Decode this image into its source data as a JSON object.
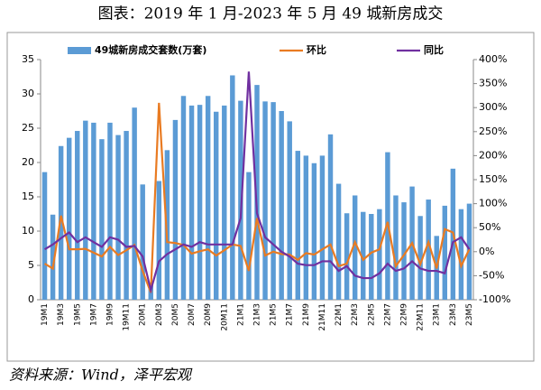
{
  "chart_data": {
    "type": "bar_line",
    "title": "图表：2019 年 1 月-2023 年 5 月 49 城新房成交",
    "source": "资料来源：Wind，泽平宏观",
    "categories": [
      "19M1",
      null,
      "19M3",
      null,
      "19M5",
      null,
      "19M7",
      null,
      "19M9",
      null,
      "19M11",
      null,
      "20M1",
      null,
      "20M3",
      null,
      "20M5",
      null,
      "20M7",
      null,
      "20M9",
      null,
      "20M11",
      null,
      "21M1",
      null,
      "21M3",
      null,
      "21M5",
      null,
      "21M7",
      null,
      "21M9",
      null,
      "21M11",
      null,
      "22M1",
      null,
      "22M3",
      null,
      "22M5",
      null,
      "22M7",
      null,
      "22M9",
      null,
      "22M11",
      null,
      "23M1",
      null,
      "23M3",
      null,
      "23M5"
    ],
    "series": [
      {
        "name": "49城新房成交套数(万套)",
        "color": "#5b9bd5",
        "kind": "bar",
        "values": [
          18.6,
          12.4,
          22.4,
          23.6,
          24.6,
          26.1,
          25.8,
          23.4,
          25.8,
          24.0,
          24.6,
          28.0,
          16.8,
          2.5,
          17.3,
          21.8,
          26.2,
          29.7,
          28.3,
          28.4,
          29.7,
          27.4,
          28.3,
          32.7,
          29.0,
          18.6,
          31.3,
          28.9,
          28.8,
          27.5,
          26.0,
          21.7,
          21.0,
          19.9,
          21.0,
          24.1,
          16.9,
          12.6,
          15.2,
          12.8,
          12.5,
          13.2,
          21.5,
          15.2,
          14.2,
          16.5,
          12.2,
          14.6,
          9.3,
          13.7,
          19.1,
          13.2,
          14.0
        ]
      },
      {
        "name": "环比",
        "color": "#e97b22",
        "kind": "line",
        "axis": "y2",
        "values": [
          -25,
          -35,
          75,
          5,
          5,
          6,
          -2,
          -10,
          10,
          -7,
          3,
          14,
          -40,
          -85,
          310,
          20,
          18,
          14,
          -4,
          1,
          5,
          -8,
          3,
          15,
          12,
          -40,
          70,
          -8,
          0,
          -5,
          -6,
          -17,
          -3,
          -6,
          5,
          15,
          -30,
          -25,
          20,
          -17,
          -2,
          5,
          62,
          -30,
          -7,
          18,
          -26,
          20,
          -35,
          47,
          40,
          -30,
          5
        ]
      },
      {
        "name": "同比",
        "color": "#7030a0",
        "kind": "line",
        "axis": "y2",
        "values": [
          5,
          15,
          28,
          40,
          20,
          30,
          20,
          10,
          30,
          25,
          10,
          12,
          -10,
          -80,
          -20,
          -5,
          5,
          15,
          10,
          20,
          15,
          15,
          15,
          15,
          70,
          375,
          80,
          30,
          15,
          0,
          -10,
          -25,
          -28,
          -28,
          -20,
          -20,
          -40,
          -30,
          -50,
          -55,
          -55,
          -45,
          -25,
          -40,
          -35,
          -20,
          -35,
          -40,
          -40,
          -45,
          20,
          30,
          5
        ]
      }
    ],
    "ylim": [
      0,
      35
    ],
    "yticks": [
      0,
      5,
      10,
      15,
      20,
      25,
      30,
      35
    ],
    "y2lim": [
      -100,
      400
    ],
    "y2ticks": [
      {
        "value": -100,
        "label": "-100%"
      },
      {
        "value": -50,
        "label": "-50%"
      },
      {
        "value": 0,
        "label": "0%"
      },
      {
        "value": 50,
        "label": "50%"
      },
      {
        "value": 100,
        "label": "100%"
      },
      {
        "value": 150,
        "label": "150%"
      },
      {
        "value": 200,
        "label": "200%"
      },
      {
        "value": 250,
        "label": "250%"
      },
      {
        "value": 300,
        "label": "300%"
      },
      {
        "value": 350,
        "label": "350%"
      },
      {
        "value": 400,
        "label": "400%"
      }
    ]
  }
}
